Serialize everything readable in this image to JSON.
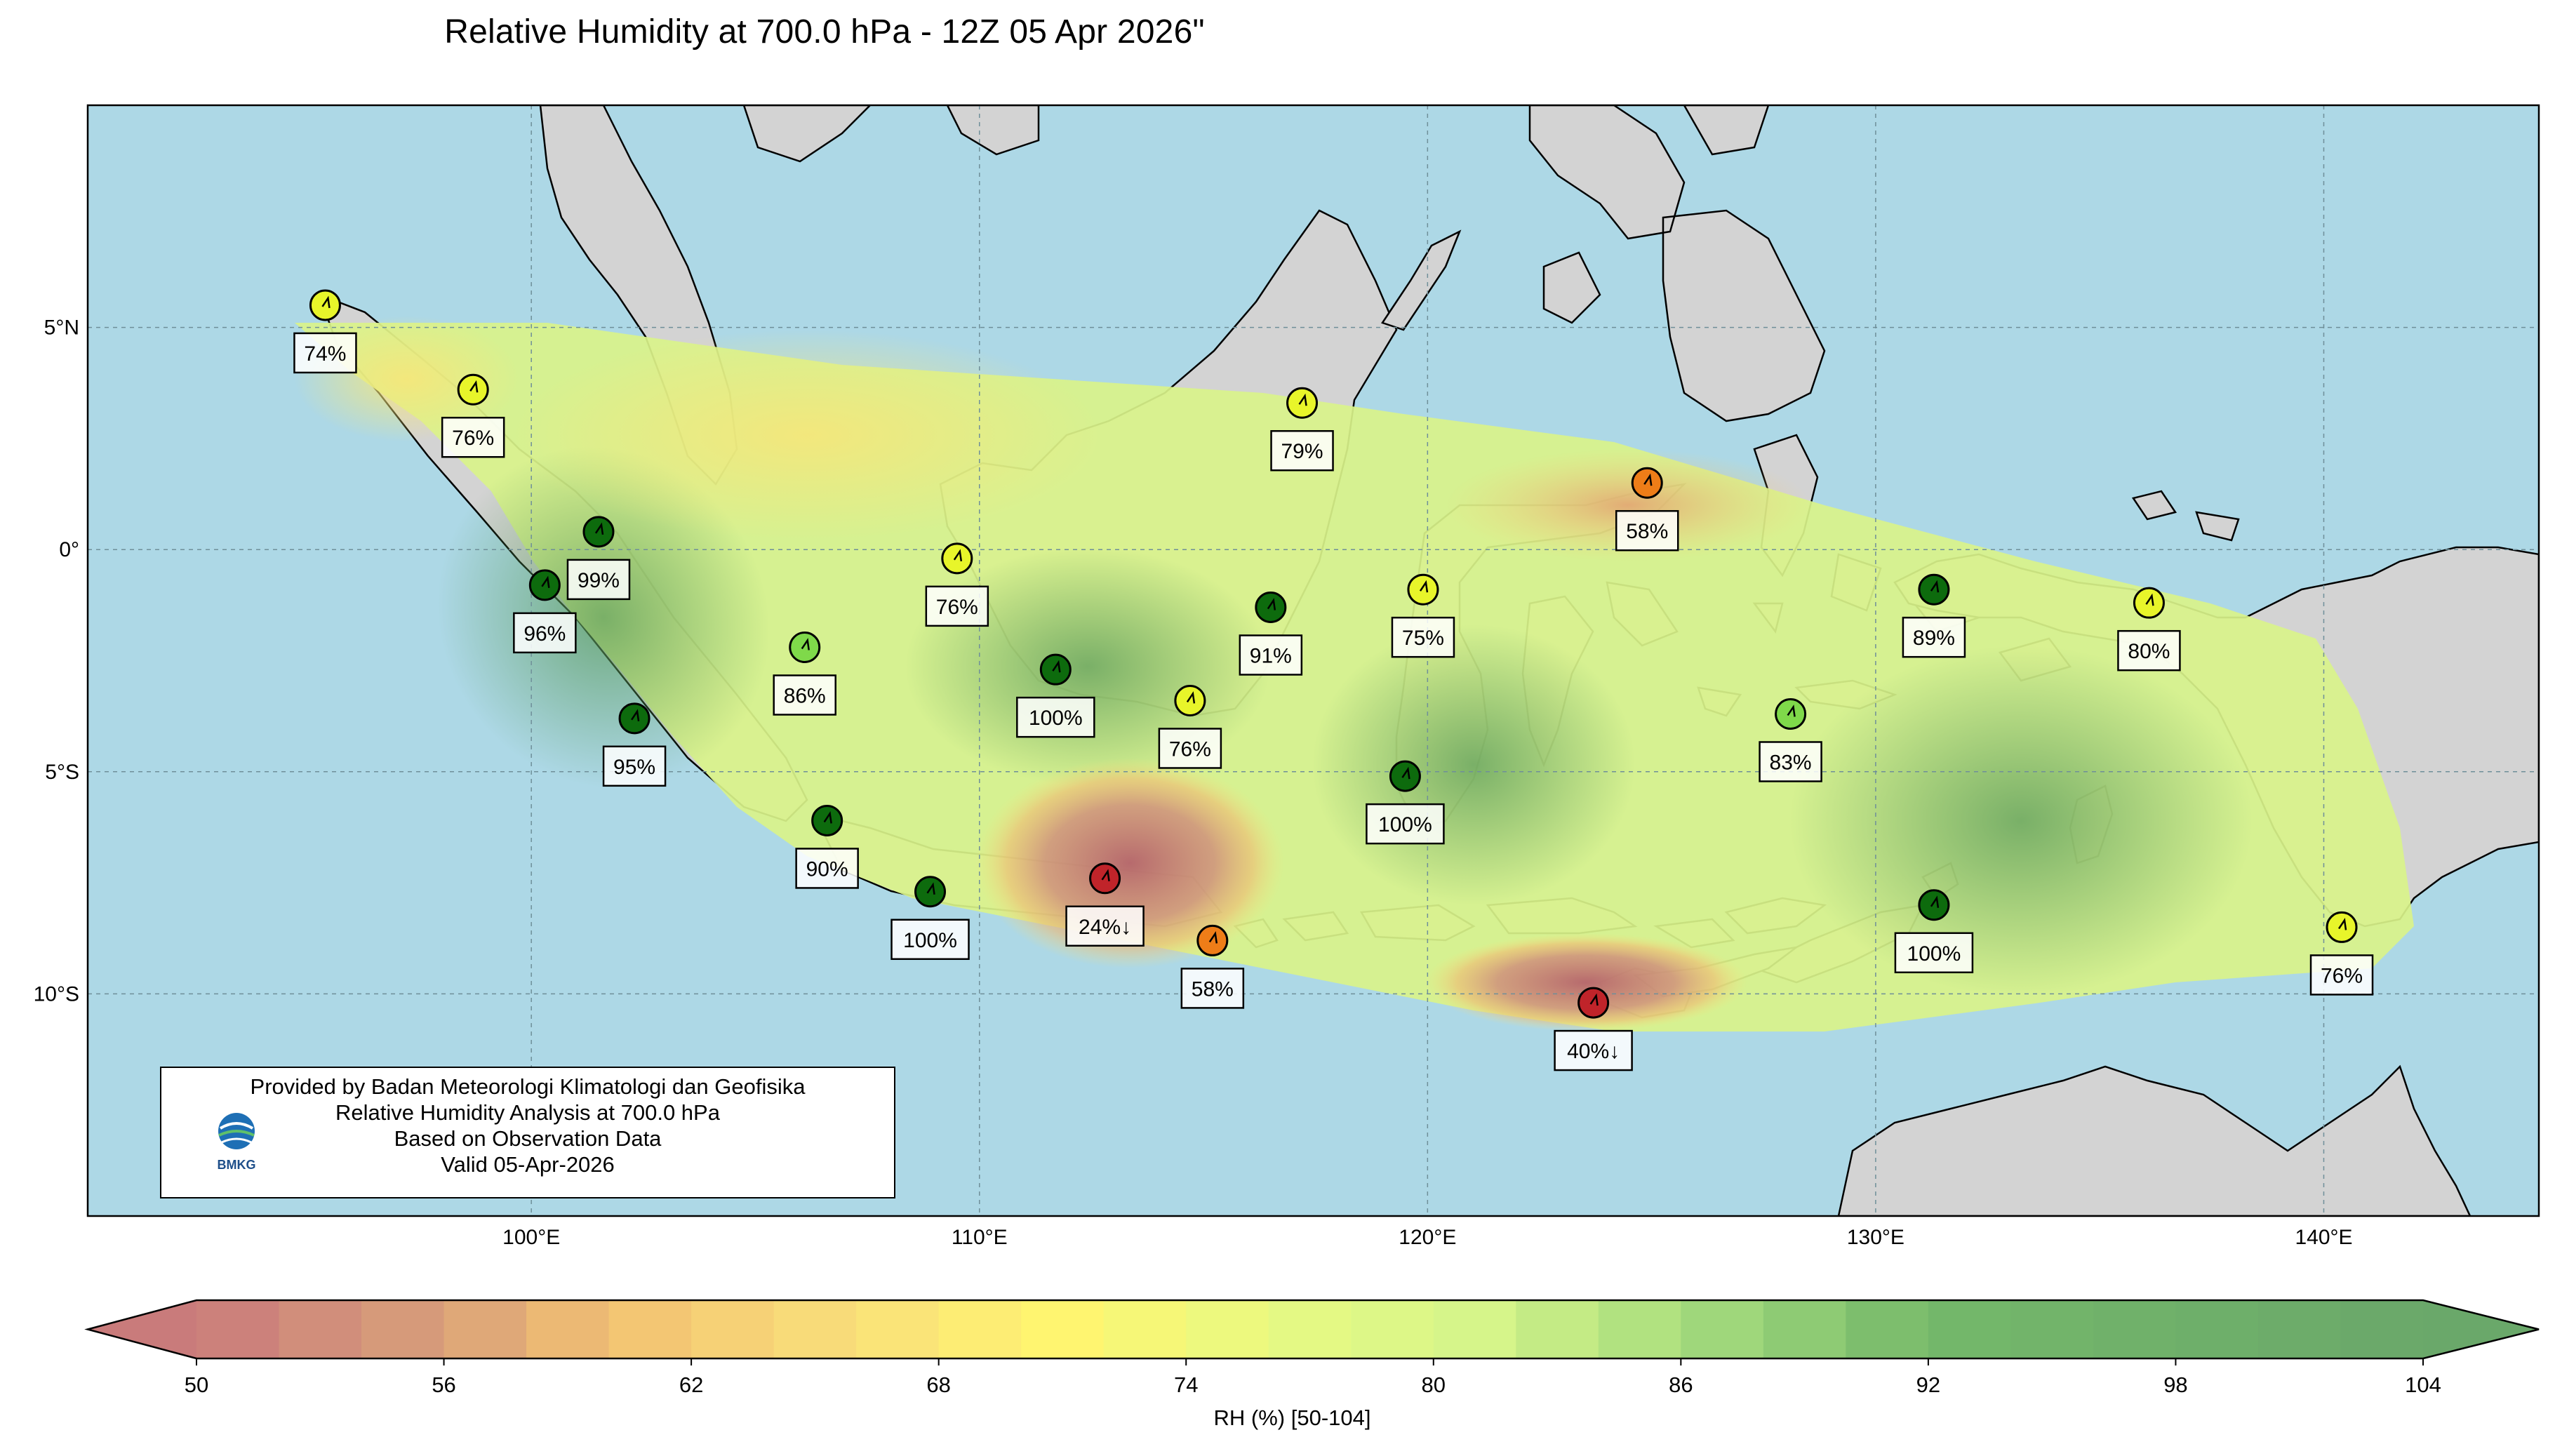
{
  "title": "Relative Humidity at 700.0 hPa - 12Z 05 Apr 2026\"",
  "map": {
    "extent": {
      "lon_min": 90.1,
      "lon_max": 144.8,
      "lat_min": -15.0,
      "lat_max": 10.0
    },
    "lat_ticks": [
      {
        "lat": 5,
        "label": "5°N"
      },
      {
        "lat": 0,
        "label": "0°"
      },
      {
        "lat": -5,
        "label": "5°S"
      },
      {
        "lat": -10,
        "label": "10°S"
      }
    ],
    "lon_ticks": [
      {
        "lon": 100,
        "label": "100°E"
      },
      {
        "lon": 110,
        "label": "110°E"
      },
      {
        "lon": 120,
        "label": "120°E"
      },
      {
        "lon": 130,
        "label": "130°E"
      },
      {
        "lon": 140,
        "label": "140°E"
      }
    ],
    "colors": {
      "ocean": "#add8e6",
      "land": "#d3d3d3",
      "coast": "#000000",
      "grid": "#7f9fa8"
    }
  },
  "stations": [
    {
      "lon": 95.4,
      "lat": 5.5,
      "label": "74%",
      "rh": 74
    },
    {
      "lon": 98.7,
      "lat": 3.6,
      "label": "76%",
      "rh": 76
    },
    {
      "lon": 101.5,
      "lat": 0.4,
      "label": "99%",
      "rh": 99
    },
    {
      "lon": 100.3,
      "lat": -0.8,
      "label": "96%",
      "rh": 96
    },
    {
      "lon": 102.3,
      "lat": -3.8,
      "label": "95%",
      "rh": 95
    },
    {
      "lon": 106.1,
      "lat": -2.2,
      "label": "86%",
      "rh": 86
    },
    {
      "lon": 109.5,
      "lat": -0.2,
      "label": "76%",
      "rh": 76
    },
    {
      "lon": 111.7,
      "lat": -2.7,
      "label": "100%",
      "rh": 100
    },
    {
      "lon": 106.6,
      "lat": -6.1,
      "label": "90%",
      "rh": 90
    },
    {
      "lon": 108.9,
      "lat": -7.7,
      "label": "100%",
      "rh": 100
    },
    {
      "lon": 112.8,
      "lat": -7.4,
      "label": "24%↓",
      "rh": 24
    },
    {
      "lon": 114.7,
      "lat": -3.4,
      "label": "76%",
      "rh": 76
    },
    {
      "lon": 115.2,
      "lat": -8.8,
      "label": "58%",
      "rh": 58
    },
    {
      "lon": 117.2,
      "lat": 3.3,
      "label": "79%",
      "rh": 79
    },
    {
      "lon": 116.5,
      "lat": -1.3,
      "label": "91%",
      "rh": 91
    },
    {
      "lon": 119.9,
      "lat": -0.9,
      "label": "75%",
      "rh": 75
    },
    {
      "lon": 119.5,
      "lat": -5.1,
      "label": "100%",
      "rh": 100
    },
    {
      "lon": 124.9,
      "lat": 1.5,
      "label": "58%",
      "rh": 58
    },
    {
      "lon": 123.7,
      "lat": -10.2,
      "label": "40%↓",
      "rh": 40
    },
    {
      "lon": 128.1,
      "lat": -3.7,
      "label": "83%",
      "rh": 83
    },
    {
      "lon": 131.3,
      "lat": -0.9,
      "label": "89%",
      "rh": 89
    },
    {
      "lon": 131.3,
      "lat": -8.0,
      "label": "100%",
      "rh": 100
    },
    {
      "lon": 136.1,
      "lat": -1.2,
      "label": "80%",
      "rh": 80
    },
    {
      "lon": 140.4,
      "lat": -8.5,
      "label": "76%",
      "rh": 76
    }
  ],
  "colorbar": {
    "label": "RH (%) [50-104]",
    "min": 50,
    "max": 104,
    "step": 2,
    "ticks": [
      "50",
      "56",
      "62",
      "68",
      "74",
      "80",
      "86",
      "92",
      "98",
      "104"
    ],
    "stops": [
      {
        "v": 50,
        "c": "#c97b7b"
      },
      {
        "v": 56,
        "c": "#d9a07a"
      },
      {
        "v": 60,
        "c": "#f2c172"
      },
      {
        "v": 66,
        "c": "#f9e07a"
      },
      {
        "v": 71,
        "c": "#fff570"
      },
      {
        "v": 76,
        "c": "#e8fa82"
      },
      {
        "v": 81,
        "c": "#d6f58a"
      },
      {
        "v": 86,
        "c": "#a8dd7e"
      },
      {
        "v": 92,
        "c": "#74b86a"
      },
      {
        "v": 104,
        "c": "#6aa86a"
      }
    ]
  },
  "credit": {
    "line1": "Provided by Badan Meteorologi Klimatologi dan Geofisika",
    "line2": "Relative Humidity Analysis at 700.0 hPa",
    "line3": "Based on Observation Data",
    "line4": "Valid 05-Apr-2026",
    "logo_text": "BMKG"
  }
}
